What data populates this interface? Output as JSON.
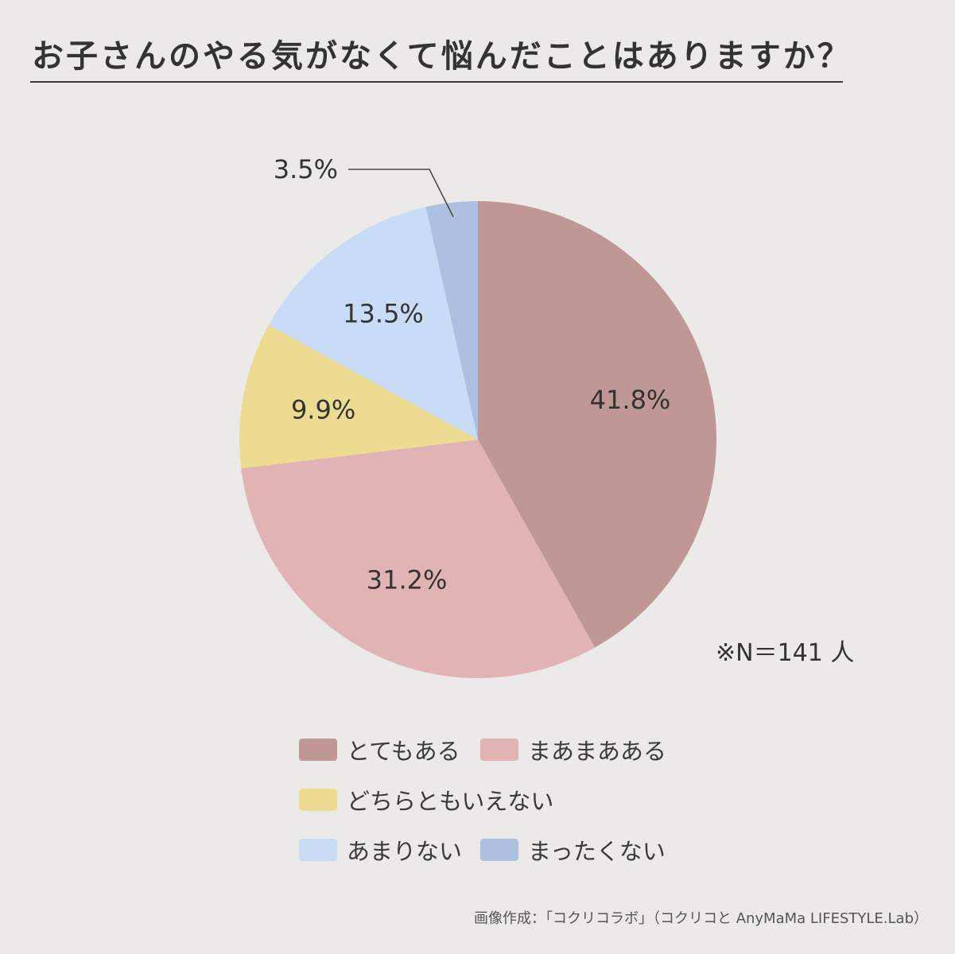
{
  "title": "お子さんのやる気がなくて悩んだことはありますか？",
  "note": "※N＝141 人",
  "credit": "画像作成：「コクリコラボ」（コクリコと AnyMaMa LIFESTYLE.Lab）",
  "chart_data": {
    "type": "pie",
    "categories": [
      "とてもある",
      "まあまあある",
      "どちらともいえない",
      "あまりない",
      "まったくない"
    ],
    "values": [
      41.8,
      31.2,
      9.9,
      13.5,
      3.5
    ],
    "data_labels": [
      "41.8%",
      "31.2%",
      "9.9%",
      "13.5%",
      "3.5%"
    ],
    "colors": [
      "#bf9795",
      "#e2b3b5",
      "#ecdb90",
      "#c8dcf8",
      "#aec0df"
    ],
    "start_angle": "12 o'clock",
    "direction": "clockwise",
    "legend": "bottom",
    "legend_labels": [
      "とてもある",
      "まあまあある",
      "どちらともいえない",
      "あまりない",
      "まったくない"
    ]
  }
}
